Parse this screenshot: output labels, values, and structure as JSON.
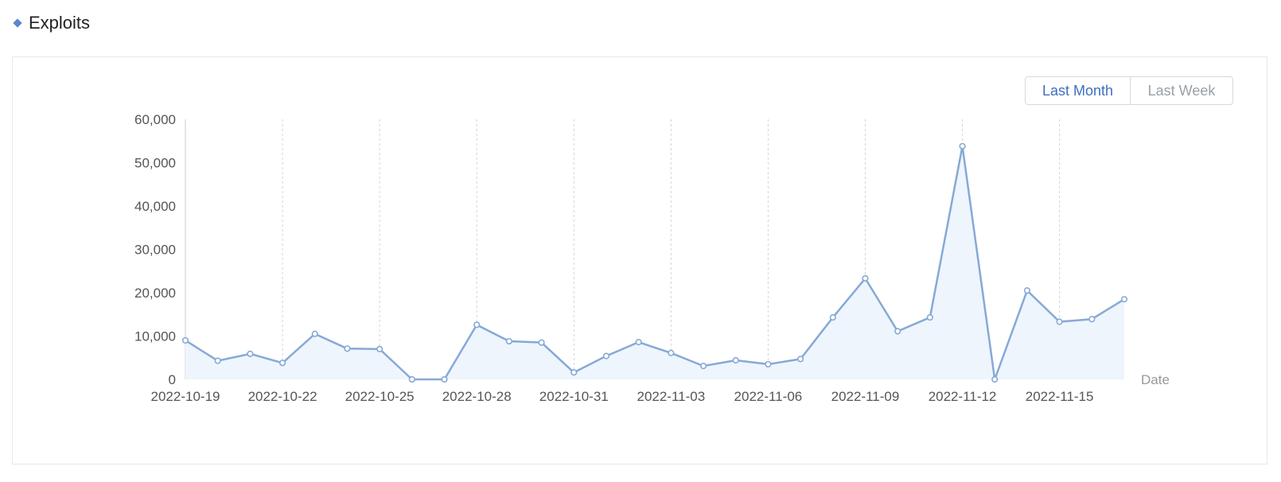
{
  "section": {
    "title": "Exploits",
    "bullet_icon": "diamond-icon",
    "accent": "#5b86c9"
  },
  "range_toggle": {
    "options": [
      "Last Month",
      "Last Week"
    ],
    "selected": "Last Month",
    "active_color": "#3d6fc0",
    "inactive_color": "#9aa0a6"
  },
  "chart_data": {
    "type": "area",
    "title": "",
    "xlabel": "Date",
    "ylabel": "",
    "ylim": [
      0,
      60000
    ],
    "yticks": [
      0,
      10000,
      20000,
      30000,
      40000,
      50000,
      60000
    ],
    "ytick_labels": [
      "0",
      "10,000",
      "20,000",
      "30,000",
      "40,000",
      "50,000",
      "60,000"
    ],
    "xtick_labels": [
      "2022-10-19",
      "2022-10-22",
      "2022-10-25",
      "2022-10-28",
      "2022-10-31",
      "2022-11-03",
      "2022-11-06",
      "2022-11-09",
      "2022-11-12",
      "2022-11-15"
    ],
    "grid": "vertical dashed",
    "line_color": "#86a9d6",
    "fill_color": "#eef5fd",
    "x": [
      "2022-10-19",
      "2022-10-20",
      "2022-10-21",
      "2022-10-22",
      "2022-10-23",
      "2022-10-24",
      "2022-10-25",
      "2022-10-26",
      "2022-10-27",
      "2022-10-28",
      "2022-10-29",
      "2022-10-30",
      "2022-10-31",
      "2022-11-01",
      "2022-11-02",
      "2022-11-03",
      "2022-11-04",
      "2022-11-05",
      "2022-11-06",
      "2022-11-07",
      "2022-11-08",
      "2022-11-09",
      "2022-11-10",
      "2022-11-11",
      "2022-11-12",
      "2022-11-13",
      "2022-11-14",
      "2022-11-15",
      "2022-11-16",
      "2022-11-17"
    ],
    "values": [
      9000,
      4300,
      5900,
      3800,
      10500,
      7100,
      7000,
      0,
      0,
      12600,
      8800,
      8500,
      1600,
      5400,
      8600,
      6100,
      3100,
      4400,
      3500,
      4700,
      14300,
      23300,
      11100,
      14300,
      53800,
      0,
      20500,
      13300,
      13900,
      18500
    ]
  }
}
